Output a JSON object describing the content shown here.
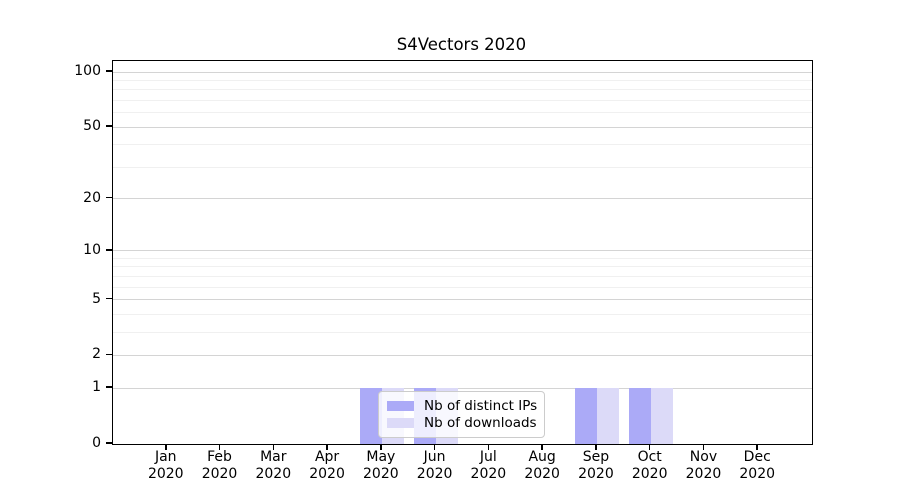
{
  "chart_data": {
    "type": "bar",
    "title": "S4Vectors 2020",
    "categories": [
      "Jan 2020",
      "Feb 2020",
      "Mar 2020",
      "Apr 2020",
      "May 2020",
      "Jun 2020",
      "Jul 2020",
      "Aug 2020",
      "Sep 2020",
      "Oct 2020",
      "Nov 2020",
      "Dec 2020"
    ],
    "series": [
      {
        "name": "Nb of distinct IPs",
        "color": "#abaaf7",
        "values": [
          0,
          0,
          0,
          0,
          1,
          1,
          0,
          0,
          1,
          1,
          0,
          0
        ]
      },
      {
        "name": "Nb of downloads",
        "color": "#dcdaf8",
        "values": [
          0,
          0,
          0,
          0,
          1,
          1,
          0,
          0,
          1,
          1,
          0,
          0
        ]
      }
    ],
    "xlabel": "",
    "ylabel": "",
    "yscale": "log1p",
    "ylim": [
      0,
      115
    ],
    "yticks": [
      0,
      1,
      2,
      5,
      10,
      20,
      50,
      100
    ],
    "ytick_labels": [
      "0",
      "1",
      "2",
      "5",
      "10",
      "20",
      "50",
      "100"
    ],
    "minor_gridlines": [
      3,
      4,
      6,
      7,
      8,
      9,
      30,
      40,
      60,
      70,
      80,
      90
    ],
    "grid": "horizontal-on",
    "legend_position": "inside-bottom-center"
  },
  "colors": {
    "background": "#ffffff",
    "axis": "#000000",
    "major_grid": "#d4d4d4",
    "minor_grid": "#f0f0f0",
    "text": "#000000"
  }
}
